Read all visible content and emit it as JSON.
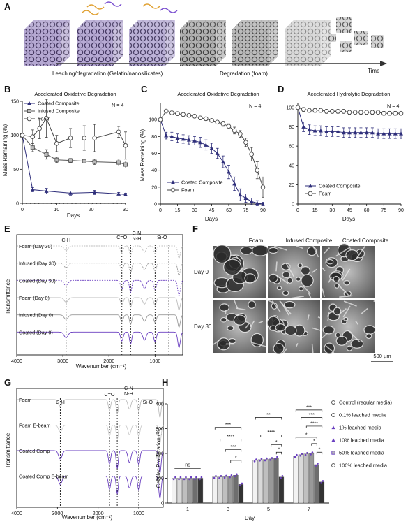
{
  "panel_letters": [
    "A",
    "B",
    "C",
    "D",
    "E",
    "F",
    "G",
    "H"
  ],
  "panelA": {
    "label_leach": "Leaching/degradation (Gelatin/nanosilicates)",
    "label_degr": "Degradation (foam)",
    "label_time": "Time"
  },
  "panelF": {
    "cols": [
      "Foam",
      "Infused Composite",
      "Coated Composite"
    ],
    "rows": [
      "Day 0",
      "Day 30"
    ],
    "scale": "500 µm"
  },
  "colors": {
    "coated": "#2e2e7a",
    "infused": "#555555",
    "foam": "#888888",
    "purple": "#6a3fc0",
    "ebeam": "#f0a040",
    "gray_line": "#bdbdbd"
  },
  "chart_data": [
    {
      "panel": "B",
      "type": "line",
      "title": "Accelerated Oxidative Degradation",
      "xlabel": "Days",
      "ylabel": "Mass Remaining (%)",
      "xlim": [
        0,
        30
      ],
      "ylim": [
        0,
        150
      ],
      "xticks": [
        "0",
        "10",
        "20",
        "30"
      ],
      "yticks": [
        "0",
        "50",
        "100",
        "150"
      ],
      "annotation": "N = 4",
      "series": [
        {
          "name": "Coated Composite",
          "marker": "triangle",
          "x": [
            0,
            3,
            7,
            14,
            21,
            28,
            30
          ],
          "y": [
            100,
            20,
            18,
            15,
            16,
            14,
            13
          ],
          "err": [
            0,
            3,
            4,
            3,
            3,
            2,
            2
          ]
        },
        {
          "name": "Infused Composite",
          "marker": "square",
          "x": [
            0,
            3,
            7,
            10,
            14,
            18,
            21,
            28,
            30
          ],
          "y": [
            100,
            82,
            72,
            64,
            63,
            62,
            61,
            60,
            57
          ],
          "err": [
            0,
            6,
            7,
            4,
            3,
            3,
            4,
            5,
            5
          ]
        },
        {
          "name": "Foam",
          "marker": "circle",
          "x": [
            0,
            3,
            5,
            7,
            10,
            14,
            18,
            21,
            28,
            30
          ],
          "y": [
            100,
            98,
            110,
            125,
            88,
            96,
            96,
            96,
            105,
            85
          ],
          "err": [
            0,
            10,
            15,
            28,
            12,
            14,
            18,
            20,
            8,
            20
          ]
        }
      ]
    },
    {
      "panel": "C",
      "type": "line",
      "title": "Accelerated Oxidative Degradation",
      "xlabel": "Days",
      "ylabel": "Mass Remaining (%)",
      "xlim": [
        0,
        90
      ],
      "ylim": [
        0,
        120
      ],
      "xticks": [
        "0",
        "15",
        "30",
        "45",
        "60",
        "75",
        "90"
      ],
      "yticks": [
        "0",
        "20",
        "40",
        "60",
        "80",
        "100"
      ],
      "annotation": "N = 4",
      "series": [
        {
          "name": "Coated Composite",
          "marker": "triangle",
          "x": [
            0,
            5,
            10,
            15,
            20,
            25,
            30,
            35,
            40,
            45,
            50,
            55,
            60,
            65,
            70,
            75,
            80,
            85,
            90
          ],
          "y": [
            100,
            81,
            80,
            78,
            77,
            76,
            75,
            73,
            70,
            66,
            60,
            50,
            38,
            24,
            11,
            7,
            3,
            1,
            0
          ],
          "err": [
            0,
            4,
            5,
            5,
            5,
            5,
            5,
            6,
            6,
            6,
            6,
            7,
            8,
            8,
            7,
            5,
            4,
            3,
            2
          ]
        },
        {
          "name": "Foam",
          "marker": "circle",
          "x": [
            0,
            5,
            10,
            15,
            20,
            25,
            30,
            35,
            40,
            45,
            50,
            55,
            60,
            65,
            70,
            75,
            80,
            85,
            90
          ],
          "y": [
            100,
            110,
            108,
            107,
            106,
            105,
            104,
            102,
            101,
            99,
            97,
            95,
            92,
            87,
            83,
            73,
            59,
            40,
            20
          ],
          "err": [
            0,
            2,
            2,
            2,
            2,
            2,
            2,
            2,
            2,
            2,
            2,
            3,
            3,
            4,
            4,
            5,
            8,
            10,
            12
          ]
        }
      ]
    },
    {
      "panel": "D",
      "type": "line",
      "title": "Accelerated Hydrolytic Degradation",
      "xlabel": "Days",
      "ylabel": "",
      "xlim": [
        0,
        90
      ],
      "ylim": [
        0,
        105
      ],
      "xticks": [
        "0",
        "15",
        "30",
        "45",
        "60",
        "75",
        "90"
      ],
      "yticks": [
        "0",
        "20",
        "40",
        "60",
        "80",
        "100"
      ],
      "annotation": "N = 4",
      "series": [
        {
          "name": "Coated Composite",
          "marker": "triangle",
          "x": [
            0,
            5,
            10,
            15,
            20,
            25,
            30,
            35,
            40,
            45,
            50,
            55,
            60,
            65,
            70,
            75,
            80,
            85,
            90
          ],
          "y": [
            100,
            80,
            77,
            76,
            76,
            75,
            75,
            75,
            74,
            74,
            74,
            74,
            74,
            74,
            73,
            73,
            73,
            73,
            73
          ],
          "err": [
            0,
            5,
            5,
            5,
            5,
            5,
            5,
            5,
            5,
            5,
            5,
            5,
            5,
            5,
            5,
            5,
            5,
            5,
            5
          ]
        },
        {
          "name": "Foam",
          "marker": "circle",
          "x": [
            0,
            5,
            10,
            15,
            20,
            25,
            30,
            35,
            40,
            45,
            50,
            55,
            60,
            65,
            70,
            75,
            80,
            85,
            90
          ],
          "y": [
            100,
            98,
            97,
            97,
            97,
            96,
            96,
            96,
            96,
            95,
            95,
            95,
            95,
            95,
            95,
            94,
            94,
            94,
            94
          ],
          "err": [
            0,
            2,
            2,
            2,
            2,
            2,
            2,
            2,
            2,
            2,
            2,
            2,
            2,
            2,
            2,
            2,
            2,
            2,
            2
          ]
        }
      ]
    },
    {
      "panel": "E",
      "type": "line",
      "xlabel": "Wavenumber (cm⁻¹)",
      "ylabel": "Transmittance",
      "xticks": [
        "4000",
        "3000",
        "2000",
        "1000"
      ],
      "bands": [
        "C-H",
        "C=O",
        "C-N\nN-H",
        "Si-O"
      ],
      "band_lines": [
        "C-H",
        "C=O",
        "C-N",
        "N-H",
        "Si-O"
      ],
      "series": [
        {
          "name": "Foam (Day 30)"
        },
        {
          "name": "Infused (Day 30)"
        },
        {
          "name": "Coated (Day 30)"
        },
        {
          "name": "Foam (Day 0)"
        },
        {
          "name": "Infused (Day 0)"
        },
        {
          "name": "Coated (Day 0)"
        }
      ]
    },
    {
      "panel": "G",
      "type": "line",
      "xlabel": "Wavenumber (cm⁻¹)",
      "ylabel": "Transmittance",
      "xticks": [
        "4000",
        "3000",
        "2000",
        "1000"
      ],
      "bands": [
        "C-H",
        "C=O",
        "C-N",
        "N-H",
        "Si-O"
      ],
      "series": [
        {
          "name": "Foam"
        },
        {
          "name": "Foam E-beam"
        },
        {
          "name": "Coated Comp"
        },
        {
          "name": "Coated Comp E-beam"
        }
      ]
    },
    {
      "panel": "H",
      "type": "bar",
      "xlabel": "Day",
      "ylabel": "Cellular Proliferation (%)",
      "ylim": [
        0,
        400
      ],
      "yticks": [
        "0",
        "100",
        "200",
        "300",
        "400"
      ],
      "categories": [
        "1",
        "3",
        "5",
        "7"
      ],
      "series": [
        {
          "name": "Control (regular media)",
          "values": [
            100,
            105,
            172,
            190
          ]
        },
        {
          "name": "0.1% leached media",
          "values": [
            100,
            105,
            175,
            195
          ]
        },
        {
          "name": "1% leached media",
          "values": [
            100,
            106,
            176,
            198
          ]
        },
        {
          "name": "10% leached media",
          "values": [
            100,
            108,
            178,
            200
          ]
        },
        {
          "name": "50% leached media",
          "values": [
            100,
            112,
            182,
            155
          ]
        },
        {
          "name": "100% leached media",
          "values": [
            100,
            75,
            105,
            85
          ]
        }
      ],
      "annotations": [
        "ns",
        "***",
        "****",
        "***",
        "*",
        "**",
        "****",
        "*",
        "*",
        "***",
        "***",
        "****",
        "*",
        "*",
        "*"
      ]
    }
  ]
}
